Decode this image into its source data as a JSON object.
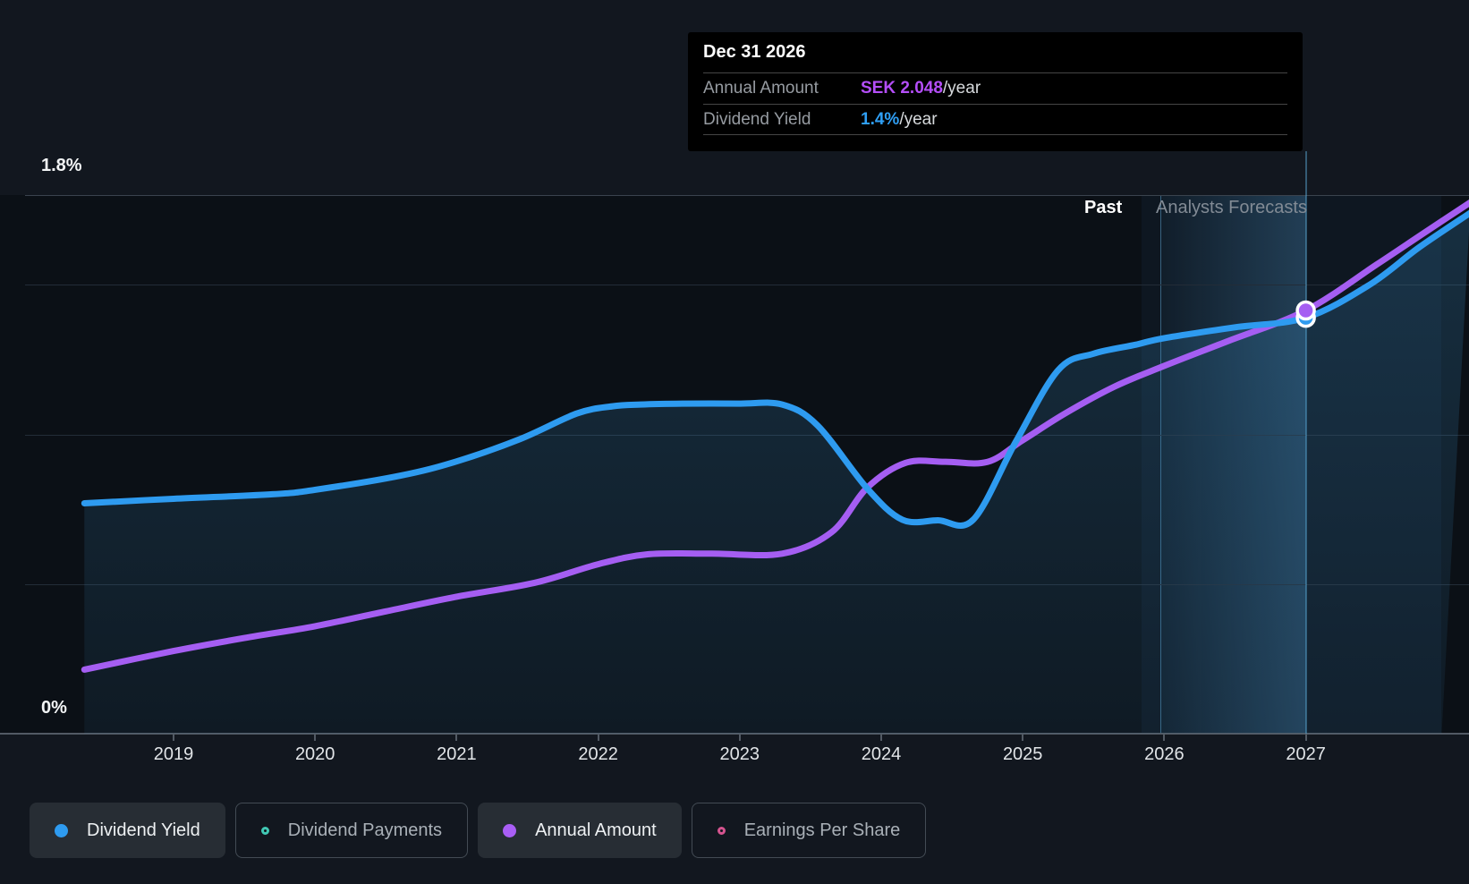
{
  "axis": {
    "y_top_label": "1.8%",
    "y_bottom_label": "0%",
    "x_ticks": [
      "2019",
      "2020",
      "2021",
      "2022",
      "2023",
      "2024",
      "2025",
      "2026",
      "2027"
    ]
  },
  "annotations": {
    "past": "Past",
    "forecast": "Analysts Forecasts"
  },
  "tooltip": {
    "date": "Dec 31 2026",
    "rows": [
      {
        "label": "Annual Amount",
        "value": "SEK 2.048",
        "suffix": "/year",
        "color": "#b44ef8"
      },
      {
        "label": "Dividend Yield",
        "value": "1.4%",
        "suffix": "/year",
        "color": "#2f9ff5"
      }
    ]
  },
  "legend": [
    {
      "label": "Dividend Yield",
      "color": "#2e9bf0",
      "style": "filled",
      "active": true
    },
    {
      "label": "Dividend Payments",
      "color": "#41c8b4",
      "style": "outlined",
      "active": false
    },
    {
      "label": "Annual Amount",
      "color": "#a95ef5",
      "style": "filled",
      "active": true
    },
    {
      "label": "Earnings Per Share",
      "color": "#d5548f",
      "style": "outlined",
      "active": false
    }
  ],
  "colors": {
    "yield_line": "#2e9bf0",
    "amount_line": "#a55ef2",
    "area_fill_top": "rgba(60,145,200,0.24)",
    "area_fill_bottom": "rgba(60,145,200,0.08)",
    "background": "#12171f",
    "plot_background": "#0b1016",
    "tooltip_background": "#000000"
  },
  "chart_data": {
    "type": "line",
    "title": "Dividend yield history and forecast (hovered at Dec 31 2026)",
    "x_axis": {
      "tick_years": [
        2019,
        2020,
        2021,
        2022,
        2023,
        2024,
        2025,
        2026,
        2027
      ],
      "range_years": [
        2018.37,
        2028.16
      ]
    },
    "y_axis": {
      "min_pct": 0,
      "max_pct": 1.8,
      "gridline_pcts": [
        1.8,
        1.5,
        1.0,
        0.5
      ],
      "labels_shown": [
        "1.8%",
        "0%"
      ]
    },
    "legend_position": "bottom",
    "grid": true,
    "series": [
      {
        "name": "Dividend Yield",
        "unit": "%",
        "color": "#2e9bf0",
        "points": [
          [
            2018.37,
            0.77
          ],
          [
            2019,
            0.785
          ],
          [
            2019.7,
            0.8
          ],
          [
            2020,
            0.815
          ],
          [
            2020.6,
            0.862
          ],
          [
            2021,
            0.91
          ],
          [
            2021.45,
            0.985
          ],
          [
            2021.85,
            1.07
          ],
          [
            2022.1,
            1.094
          ],
          [
            2022.3,
            1.1
          ],
          [
            2022.6,
            1.103
          ],
          [
            2023.0,
            1.103
          ],
          [
            2023.3,
            1.1
          ],
          [
            2023.55,
            1.03
          ],
          [
            2023.9,
            0.82
          ],
          [
            2024.15,
            0.715
          ],
          [
            2024.4,
            0.713
          ],
          [
            2024.65,
            0.715
          ],
          [
            2024.95,
            0.975
          ],
          [
            2025.25,
            1.215
          ],
          [
            2025.5,
            1.27
          ],
          [
            2025.8,
            1.3
          ],
          [
            2026,
            1.322
          ],
          [
            2026.5,
            1.358
          ],
          [
            2027,
            1.39
          ],
          [
            2027.45,
            1.5
          ],
          [
            2027.8,
            1.625
          ],
          [
            2028.16,
            1.74
          ]
        ]
      },
      {
        "name": "Annual Amount",
        "unit": "SEK",
        "color": "#a55ef2",
        "points": [
          [
            2018.37,
            0.31
          ],
          [
            2019,
            0.4
          ],
          [
            2019.5,
            0.463
          ],
          [
            2020,
            0.52
          ],
          [
            2020.5,
            0.592
          ],
          [
            2021,
            0.663
          ],
          [
            2021.55,
            0.73
          ],
          [
            2022.0,
            0.82
          ],
          [
            2022.35,
            0.868
          ],
          [
            2022.8,
            0.871
          ],
          [
            2023.3,
            0.871
          ],
          [
            2023.65,
            0.975
          ],
          [
            2023.9,
            1.19
          ],
          [
            2024.17,
            1.31
          ],
          [
            2024.45,
            1.316
          ],
          [
            2024.75,
            1.315
          ],
          [
            2025.0,
            1.42
          ],
          [
            2025.3,
            1.55
          ],
          [
            2025.65,
            1.68
          ],
          [
            2026.0,
            1.78
          ],
          [
            2026.45,
            1.9
          ],
          [
            2027.0,
            2.048
          ],
          [
            2027.5,
            2.27
          ],
          [
            2027.85,
            2.43
          ],
          [
            2028.16,
            2.57
          ]
        ]
      }
    ],
    "highlight": {
      "date": "Dec 31 2026",
      "year_x": 2027,
      "annual_amount_sek": 2.048,
      "dividend_yield_pct": 1.4
    },
    "regions": {
      "past_end_year": 2025.84,
      "forecast_band_start_year": 2025.97,
      "series_end_year": 2027.96
    }
  }
}
